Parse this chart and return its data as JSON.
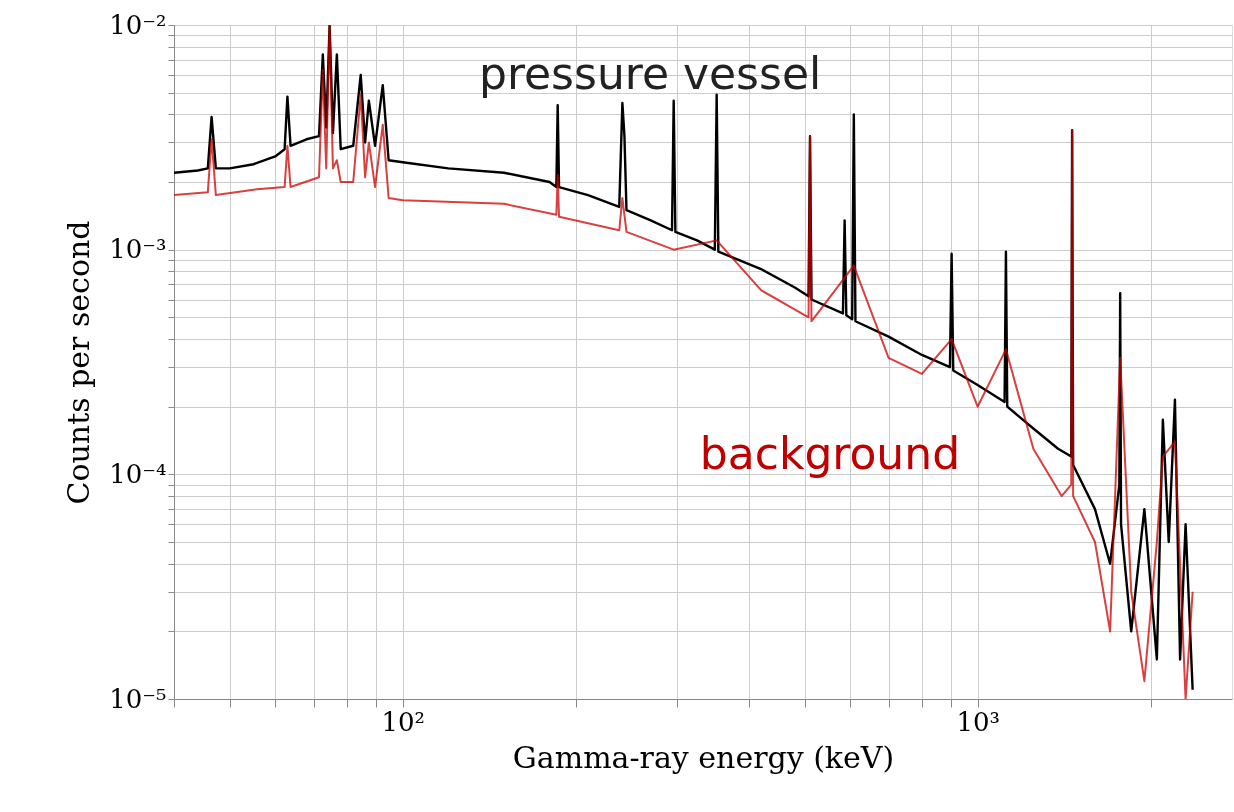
{
  "chart_data": {
    "type": "line",
    "xlabel": "Gamma-ray energy (keV)",
    "ylabel": "Counts per second",
    "log": "xy",
    "grid": true,
    "legend": false,
    "marker": "none",
    "line_style": "solid",
    "xlim": [
      40,
      2770
    ],
    "ylim": [
      1e-05,
      0.01
    ],
    "xticks": [
      {
        "value": 40,
        "label": null
      },
      {
        "value": 50,
        "label": null
      },
      {
        "value": 60,
        "label": null
      },
      {
        "value": 70,
        "label": null
      },
      {
        "value": 80,
        "label": null
      },
      {
        "value": 90,
        "label": null
      },
      {
        "value": 100,
        "label": "10²"
      },
      {
        "value": 200,
        "label": null
      },
      {
        "value": 300,
        "label": null
      },
      {
        "value": 400,
        "label": null
      },
      {
        "value": 500,
        "label": null
      },
      {
        "value": 600,
        "label": null
      },
      {
        "value": 700,
        "label": null
      },
      {
        "value": 800,
        "label": null
      },
      {
        "value": 900,
        "label": null
      },
      {
        "value": 1000,
        "label": "10³"
      },
      {
        "value": 2000,
        "label": null
      }
    ],
    "yticks": [
      {
        "value": 1e-05,
        "label": "10⁻⁵"
      },
      {
        "value": 2e-05,
        "label": null
      },
      {
        "value": 3e-05,
        "label": null
      },
      {
        "value": 4e-05,
        "label": null
      },
      {
        "value": 5e-05,
        "label": null
      },
      {
        "value": 6e-05,
        "label": null
      },
      {
        "value": 7e-05,
        "label": null
      },
      {
        "value": 8e-05,
        "label": null
      },
      {
        "value": 9e-05,
        "label": null
      },
      {
        "value": 0.0001,
        "label": "10⁻⁴"
      },
      {
        "value": 0.0002,
        "label": null
      },
      {
        "value": 0.0003,
        "label": null
      },
      {
        "value": 0.0004,
        "label": null
      },
      {
        "value": 0.0005,
        "label": null
      },
      {
        "value": 0.0006,
        "label": null
      },
      {
        "value": 0.0007,
        "label": null
      },
      {
        "value": 0.0008,
        "label": null
      },
      {
        "value": 0.0009,
        "label": null
      },
      {
        "value": 0.001,
        "label": "10⁻³"
      },
      {
        "value": 0.002,
        "label": null
      },
      {
        "value": 0.003,
        "label": null
      },
      {
        "value": 0.004,
        "label": null
      },
      {
        "value": 0.005,
        "label": null
      },
      {
        "value": 0.006,
        "label": null
      },
      {
        "value": 0.007,
        "label": null
      },
      {
        "value": 0.008,
        "label": null
      },
      {
        "value": 0.009,
        "label": null
      },
      {
        "value": 0.01,
        "label": "10⁻²"
      }
    ],
    "series": [
      {
        "name": "pressure vessel",
        "color": "#000000",
        "x": [
          40,
          44,
          45.8,
          46.5,
          47.3,
          50,
          55,
          60,
          62.3,
          63,
          63.8,
          68,
          71.5,
          72.6,
          73.6,
          74.6,
          75.6,
          76.8,
          78,
          82,
          84.5,
          86,
          87.3,
          89.5,
          92.3,
          94.5,
          100,
          120,
          150,
          180,
          185,
          186,
          187,
          210,
          238,
          241,
          243,
          245,
          270,
          294,
          296,
          298,
          325,
          349,
          351.6,
          354,
          420,
          480,
          508,
          511,
          514,
          583,
          587,
          591,
          605,
          609,
          613,
          700,
          800,
          895,
          901,
          907,
          1000,
          1114,
          1120,
          1126,
          1250,
          1380,
          1455,
          1460,
          1466,
          1600,
          1700,
          1764,
          1770,
          1776,
          1850,
          1950,
          2050,
          2100,
          2150,
          2204,
          2250,
          2300,
          2366
        ],
        "values": [
          0.0022,
          0.00225,
          0.0023,
          0.0039,
          0.0023,
          0.0023,
          0.0024,
          0.0026,
          0.0028,
          0.0048,
          0.0029,
          0.0031,
          0.0032,
          0.0074,
          0.0035,
          0.01,
          0.0033,
          0.0074,
          0.0028,
          0.0029,
          0.006,
          0.003,
          0.0046,
          0.0029,
          0.0054,
          0.0025,
          0.00245,
          0.0023,
          0.0022,
          0.002,
          0.0019,
          0.0044,
          0.0019,
          0.00175,
          0.00155,
          0.0045,
          0.0032,
          0.0015,
          0.00135,
          0.00122,
          0.0046,
          0.0012,
          0.0011,
          0.001,
          0.0049,
          0.00098,
          0.00082,
          0.00068,
          0.00062,
          0.0032,
          0.0006,
          0.00052,
          0.00135,
          0.00051,
          0.00049,
          0.004,
          0.00048,
          0.00041,
          0.00034,
          0.0003,
          0.00096,
          0.00029,
          0.00025,
          0.00021,
          0.00098,
          0.0002,
          0.00016,
          0.00013,
          0.00012,
          0.0034,
          0.00011,
          7e-05,
          4e-05,
          9e-05,
          0.00064,
          6e-05,
          2e-05,
          7e-05,
          1.5e-05,
          0.000175,
          5e-05,
          0.000215,
          1.5e-05,
          6e-05,
          1.1e-05
        ]
      },
      {
        "name": "background",
        "color": "#cc0000",
        "x": [
          40,
          45.8,
          46.5,
          47.3,
          55,
          62.3,
          63,
          63.8,
          71.5,
          72.6,
          73.6,
          74.6,
          75.6,
          76.8,
          78,
          82,
          84.5,
          86,
          87.3,
          89.5,
          92.3,
          94.5,
          100,
          150,
          185,
          186,
          187,
          238,
          241,
          245,
          296,
          351.6,
          420,
          508,
          511,
          514,
          609,
          700,
          800,
          901,
          1000,
          1120,
          1250,
          1400,
          1455,
          1460,
          1466,
          1600,
          1700,
          1770,
          1850,
          1950,
          2050,
          2100,
          2204,
          2300,
          2366
        ],
        "values": [
          0.00175,
          0.0018,
          0.0031,
          0.00175,
          0.00185,
          0.0019,
          0.0029,
          0.0019,
          0.0021,
          0.0063,
          0.0023,
          0.01,
          0.0023,
          0.0025,
          0.002,
          0.002,
          0.0049,
          0.0021,
          0.003,
          0.0019,
          0.0036,
          0.0017,
          0.00166,
          0.0016,
          0.00143,
          0.00215,
          0.0014,
          0.00122,
          0.0017,
          0.0012,
          0.001,
          0.0011,
          0.00066,
          0.0005,
          0.0032,
          0.00048,
          0.00085,
          0.00033,
          0.00028,
          0.0004,
          0.0002,
          0.00036,
          0.00013,
          8e-05,
          9e-05,
          0.0034,
          8e-05,
          5e-05,
          2e-05,
          0.00033,
          3e-05,
          1.2e-05,
          5e-05,
          0.00012,
          0.00014,
          1e-05,
          3e-05
        ]
      }
    ]
  }
}
